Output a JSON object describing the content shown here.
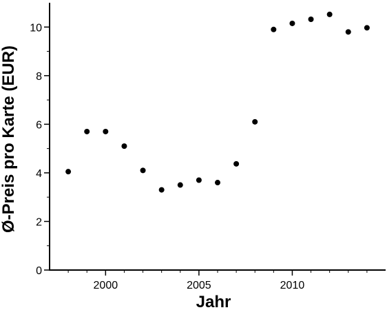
{
  "chart_data": {
    "type": "scatter",
    "xlabel": "Jahr",
    "ylabel": "Ø-Preis pro Karte (EUR)",
    "xlim": [
      1997,
      2015
    ],
    "ylim": [
      0,
      11
    ],
    "x_ticks": [
      2000,
      2005,
      2010
    ],
    "y_ticks": [
      0,
      2,
      4,
      6,
      8,
      10
    ],
    "x_tick_labels": [
      "2000",
      "2005",
      "2010"
    ],
    "y_tick_labels": [
      "0",
      "2",
      "4",
      "6",
      "8",
      "10"
    ],
    "grid": false,
    "series": [
      {
        "marker_color": "#000000",
        "points": [
          {
            "x": 1998,
            "y": 4.05
          },
          {
            "x": 1999,
            "y": 5.7
          },
          {
            "x": 2000,
            "y": 5.7
          },
          {
            "x": 2001,
            "y": 5.1
          },
          {
            "x": 2002,
            "y": 4.1
          },
          {
            "x": 2003,
            "y": 3.3
          },
          {
            "x": 2004,
            "y": 3.5
          },
          {
            "x": 2005,
            "y": 3.7
          },
          {
            "x": 2006,
            "y": 3.6
          },
          {
            "x": 2007,
            "y": 4.37
          },
          {
            "x": 2008,
            "y": 6.1
          },
          {
            "x": 2009,
            "y": 9.9
          },
          {
            "x": 2010,
            "y": 10.15
          },
          {
            "x": 2011,
            "y": 10.32
          },
          {
            "x": 2012,
            "y": 10.52
          },
          {
            "x": 2013,
            "y": 9.8
          },
          {
            "x": 2014,
            "y": 9.97
          }
        ]
      }
    ]
  }
}
